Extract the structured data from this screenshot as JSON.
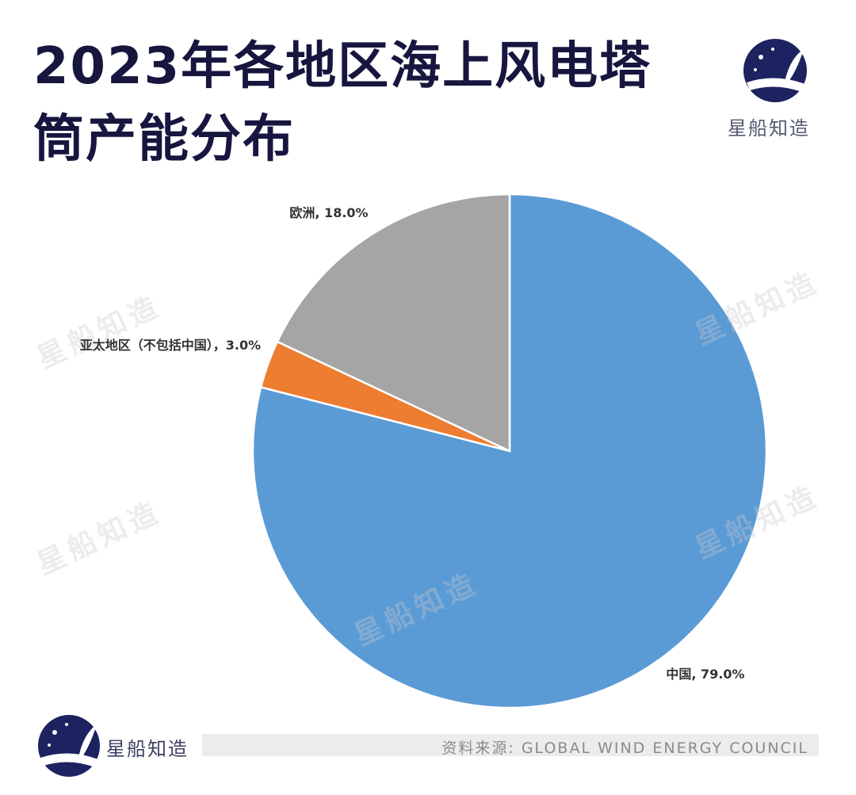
{
  "brand": "星船知造",
  "source": "资料来源: GLOBAL WIND ENERGY COUNCIL",
  "chart_data": {
    "type": "pie",
    "title": "2023年各地区海上风电塔筒产能分布",
    "values": [
      79.0,
      3.0,
      18.0
    ],
    "value_labels": [
      "中国, 79.0%",
      "亚太地区（不包括中国），3.0%",
      "欧洲, 18.0%"
    ],
    "colors": [
      "#5b9bd5",
      "#ed7d31",
      "#a5a5a5"
    ]
  }
}
